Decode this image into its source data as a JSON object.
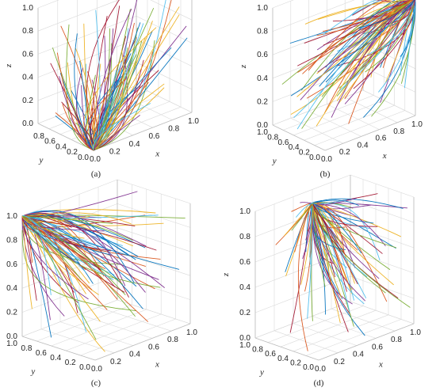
{
  "chart_data": [
    {
      "type": "line3d",
      "caption": "(a)",
      "xlabel": "x",
      "ylabel": "y",
      "zlabel": "z",
      "xlim": [
        0,
        1
      ],
      "ylim": [
        0,
        1
      ],
      "zlim": [
        0,
        1
      ],
      "x_ticks": [
        "0.0",
        "0.2",
        "0.4",
        "0.6",
        "0.8",
        "1.0"
      ],
      "y_ticks": [
        "0.0",
        "0.2",
        "0.4",
        "0.6",
        "0.8"
      ],
      "z_ticks": [
        "0.0",
        "0.2",
        "0.4",
        "0.6",
        "0.8",
        "1.0"
      ],
      "grid": true,
      "attractor": [
        0,
        0,
        0
      ]
    },
    {
      "type": "line3d",
      "caption": "(b)",
      "xlabel": "x",
      "ylabel": "y",
      "zlabel": "z",
      "xlim": [
        0,
        1
      ],
      "ylim": [
        0,
        1
      ],
      "zlim": [
        0,
        1
      ],
      "x_ticks": [
        "0.0",
        "0.2",
        "0.4",
        "0.6",
        "0.8",
        "1.0"
      ],
      "y_ticks": [
        "0.0",
        "0.2",
        "0.4",
        "0.6",
        "0.8",
        "1.0"
      ],
      "z_ticks": [
        "0.0",
        "0.2",
        "0.4",
        "0.6",
        "0.8",
        "1.0"
      ],
      "grid": true,
      "attractor": [
        1,
        0,
        1
      ]
    },
    {
      "type": "line3d",
      "caption": "(c)",
      "xlabel": "x",
      "ylabel": "y",
      "zlabel": "z",
      "xlim": [
        0,
        1
      ],
      "ylim": [
        0,
        1
      ],
      "zlim": [
        0,
        1
      ],
      "x_ticks": [
        "0.0",
        "0.2",
        "0.4",
        "0.6",
        "0.8",
        "1.0"
      ],
      "y_ticks": [
        "0.0",
        "0.2",
        "0.4",
        "0.6",
        "0.8",
        "1.0"
      ],
      "z_ticks": [
        "0.0",
        "0.2",
        "0.4",
        "0.6",
        "0.8",
        "1.0"
      ],
      "grid": true,
      "attractor": [
        0,
        1,
        1
      ]
    },
    {
      "type": "line3d",
      "caption": "(d)",
      "xlabel": "x",
      "ylabel": "y",
      "zlabel": "z",
      "xlim": [
        0,
        1
      ],
      "ylim": [
        0,
        1
      ],
      "zlim": [
        0,
        1
      ],
      "x_ticks": [
        "0.0",
        "0.2",
        "0.4",
        "0.6",
        "0.8",
        "1.0"
      ],
      "y_ticks": [
        "0.0",
        "0.2",
        "0.4",
        "0.6",
        "0.8",
        "1.0"
      ],
      "z_ticks": [
        "0.0",
        "0.2",
        "0.4",
        "0.6",
        "0.8",
        "1.0"
      ],
      "grid": true,
      "attractor": [
        0.4,
        0.7,
        1
      ]
    }
  ],
  "series_colors": [
    "#0072bd",
    "#d95319",
    "#edb120",
    "#7e2f8e",
    "#77ac30",
    "#4dbeee",
    "#a2142f"
  ]
}
